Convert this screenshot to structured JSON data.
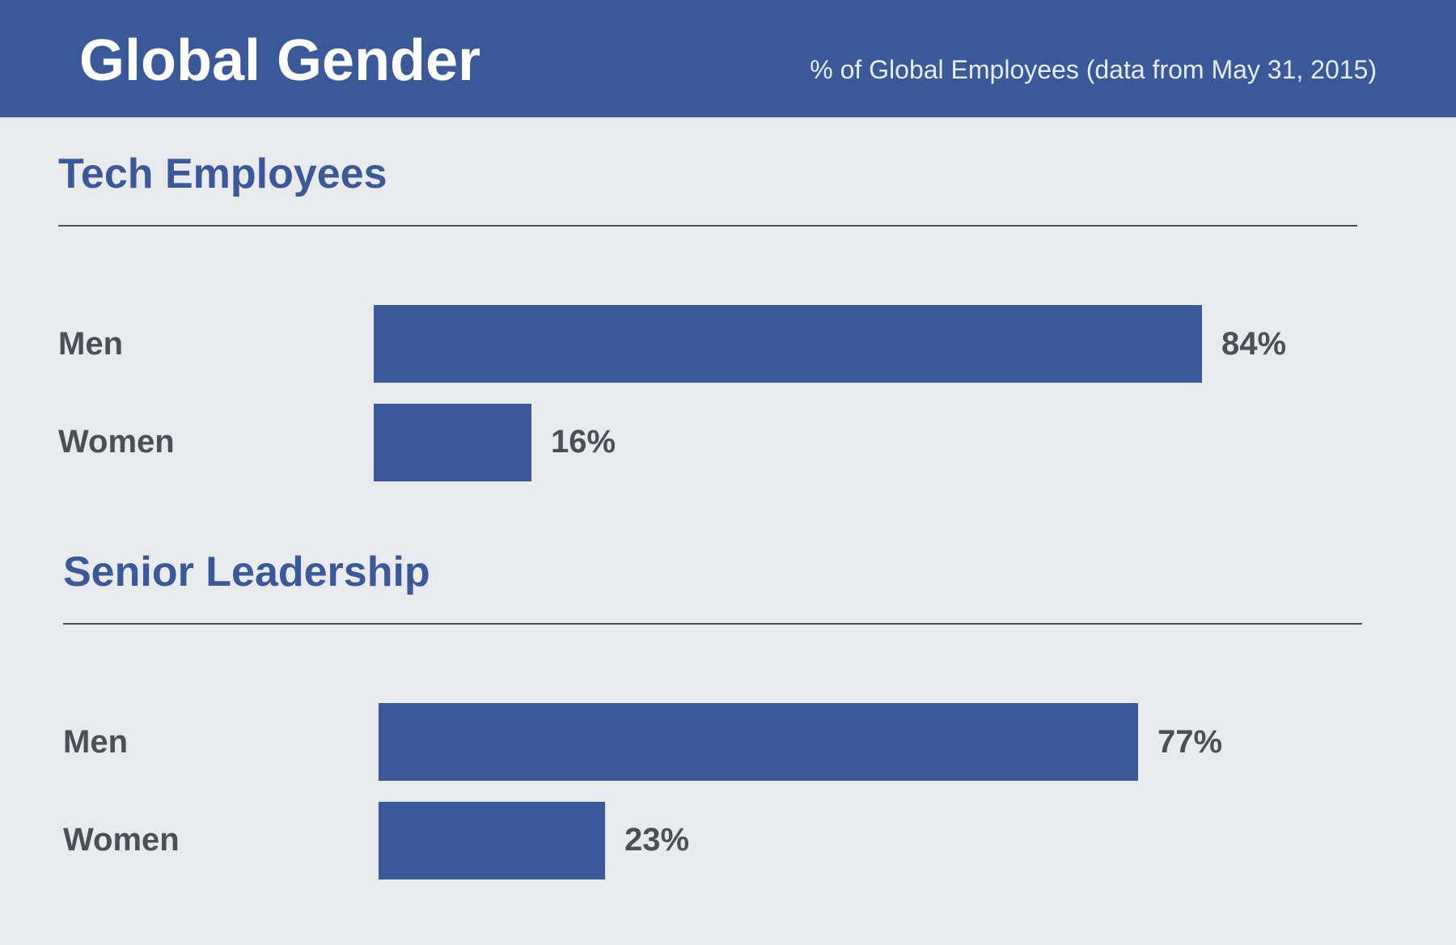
{
  "header": {
    "title": "Global Gender",
    "subtitle": "% of Global Employees (data from May 31, 2015)"
  },
  "colors": {
    "header_background": "#3b5998",
    "bar": "#3b5998",
    "page_background": "#e9eaed",
    "text": "#4b4f56"
  },
  "chart_data": [
    {
      "type": "bar",
      "orientation": "horizontal",
      "title": "Tech Employees",
      "categories": [
        "Men",
        "Women"
      ],
      "values": [
        84,
        16
      ],
      "value_labels": [
        "84%",
        "16%"
      ],
      "xlim": [
        0,
        100
      ],
      "grid": false
    },
    {
      "type": "bar",
      "orientation": "horizontal",
      "title": "Senior Leadership",
      "categories": [
        "Men",
        "Women"
      ],
      "values": [
        77,
        23
      ],
      "value_labels": [
        "77%",
        "23%"
      ],
      "xlim": [
        0,
        100
      ],
      "grid": false
    }
  ]
}
